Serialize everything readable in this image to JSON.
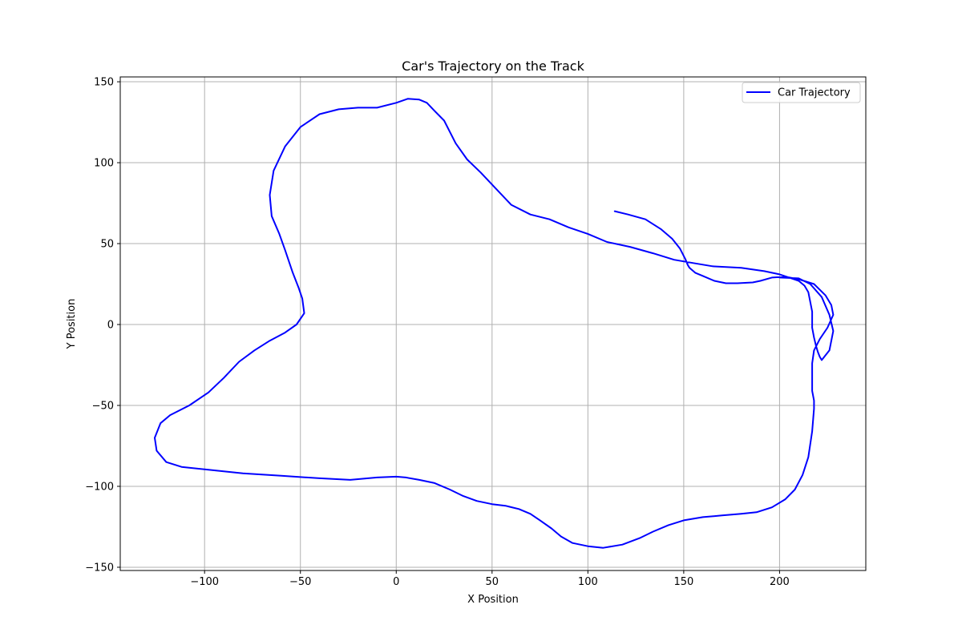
{
  "chart_data": {
    "type": "line",
    "title": "Car's Trajectory on the Track",
    "xlabel": "X Position",
    "ylabel": "Y Position",
    "xlim": [
      -144,
      245
    ],
    "ylim": [
      -152,
      153
    ],
    "xticks": [
      -100,
      -50,
      0,
      50,
      100,
      150,
      200
    ],
    "yticks": [
      -150,
      -100,
      -50,
      0,
      50,
      100,
      150
    ],
    "xtick_labels": [
      "−100",
      "−50",
      "0",
      "50",
      "100",
      "150",
      "200"
    ],
    "ytick_labels": [
      "−150",
      "−100",
      "−50",
      "0",
      "50",
      "100",
      "150"
    ],
    "grid": true,
    "legend_position": "top-right",
    "series": [
      {
        "name": "Car Trajectory",
        "color": "#0000ff",
        "x": [
          114,
          121,
          130,
          138,
          144,
          148,
          151,
          152,
          153,
          156,
          160,
          166,
          172,
          178,
          186,
          190,
          196,
          203,
          210,
          218,
          224,
          227,
          228,
          225,
          221,
          218,
          217,
          217,
          217,
          218,
          218,
          217,
          215,
          212,
          208,
          203,
          196,
          188,
          180,
          170,
          160,
          150,
          142,
          134,
          127,
          118,
          108,
          100,
          92,
          86,
          81,
          75,
          70,
          64,
          57,
          50,
          42,
          35,
          28,
          20,
          12,
          5,
          0,
          -10,
          -24,
          -40,
          -60,
          -80,
          -100,
          -112,
          -120,
          -125,
          -126,
          -123,
          -118,
          -108,
          -98,
          -90,
          -82,
          -74,
          -66,
          -58,
          -52,
          -48,
          -49,
          -51,
          -54,
          -58,
          -61,
          -65,
          -66,
          -64,
          -58,
          -50,
          -40,
          -30,
          -20,
          -10,
          0,
          6,
          12,
          16,
          20,
          25,
          31,
          37,
          44,
          52,
          60,
          70,
          80,
          90,
          100,
          110,
          122,
          134,
          145,
          155,
          165,
          180,
          192,
          200,
          205,
          210,
          213,
          215,
          216,
          217,
          217,
          217,
          218,
          219,
          220,
          221,
          222,
          226,
          228,
          226,
          222,
          216,
          210,
          200
        ],
        "y": [
          70,
          68,
          65,
          59,
          53,
          47,
          40,
          37,
          35,
          32,
          30,
          27,
          25.5,
          25.5,
          26,
          27,
          29,
          29.5,
          28,
          25,
          18,
          12,
          6,
          -2,
          -9,
          -16,
          -24,
          -33,
          -41,
          -47,
          -52,
          -66,
          -82,
          -93,
          -102,
          -108,
          -113,
          -116,
          -117,
          -118,
          -119,
          -121,
          -124,
          -128,
          -132,
          -136,
          -138,
          -137,
          -135,
          -131,
          -126,
          -121,
          -117,
          -114,
          -112,
          -111,
          -109,
          -106,
          -102,
          -98,
          -96,
          -94.5,
          -94,
          -94.5,
          -96,
          -95,
          -93.5,
          -92,
          -89.5,
          -88,
          -85,
          -78,
          -70,
          -61,
          -56,
          -50,
          -42,
          -33,
          -23,
          -16,
          -10,
          -5,
          0,
          7,
          16,
          23,
          32,
          46,
          56,
          67,
          80,
          95,
          110,
          122,
          130,
          133,
          134,
          134,
          137,
          139.5,
          139,
          137,
          132,
          126,
          112,
          102,
          94,
          84,
          74,
          68,
          65,
          60,
          56,
          51,
          48,
          44,
          40,
          38,
          36,
          35,
          33,
          31,
          29,
          27,
          24,
          20,
          14,
          8,
          3,
          -2,
          -8,
          -13,
          -17,
          -20,
          -22,
          -16,
          -4,
          6,
          17,
          25,
          28.5,
          29
        ]
      }
    ]
  }
}
